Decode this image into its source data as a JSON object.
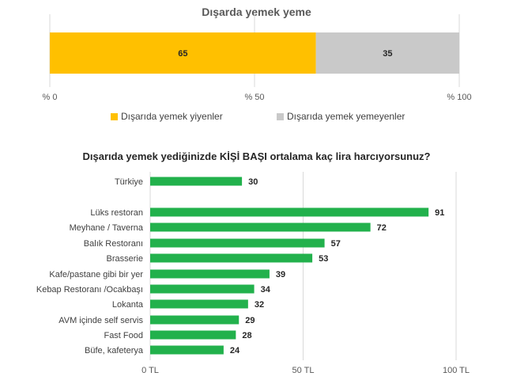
{
  "colors": {
    "primary": "#FFC000",
    "secondary": "#C9C9C9",
    "bar": "#22B14C",
    "grid": "#D9D9D9"
  },
  "chart_data": [
    {
      "type": "bar",
      "orientation": "horizontal",
      "stacked": true,
      "title": "Dışarda yemek yeme",
      "series": [
        {
          "name": "Dışarıda yemek yiyenler",
          "values": [
            65
          ],
          "color": "#FFC000"
        },
        {
          "name": "Dışarıda yemek yemeyenler",
          "values": [
            35
          ],
          "color": "#C9C9C9"
        }
      ],
      "xlim": [
        0,
        100
      ],
      "xticks": [
        "% 0",
        "% 50",
        "% 100"
      ],
      "legend": "bottom",
      "grid": true
    },
    {
      "type": "bar",
      "orientation": "horizontal",
      "title": "Dışarıda yemek yediğinizde KİŞİ BAŞI ortalama kaç lira harcıyorsunuz?",
      "categories": [
        "Türkiye",
        "Lüks restoran",
        "Meyhane / Taverna",
        "Balık Restoranı",
        "Brasserie",
        "Kafe/pastane gibi bir yer",
        "Kebap Restoranı /Ocakbaşı",
        "Lokanta",
        "AVM içinde self servis",
        "Fast Food",
        "Büfe, kafeterya"
      ],
      "values": [
        30,
        91,
        72,
        57,
        53,
        39,
        34,
        32,
        29,
        28,
        24
      ],
      "xlim": [
        0,
        100
      ],
      "xticks": [
        "0 TL",
        "50 TL",
        "100 TL"
      ],
      "grid": true
    }
  ]
}
